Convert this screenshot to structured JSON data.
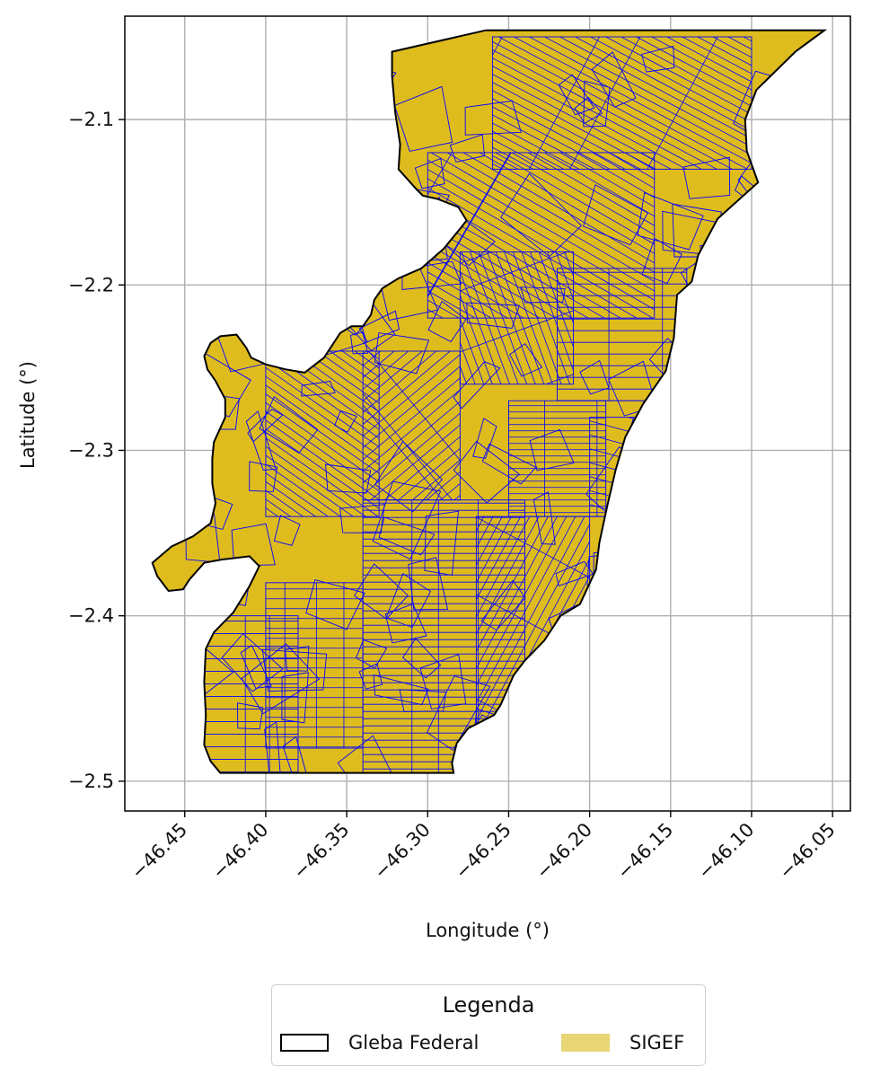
{
  "chart_data": {
    "type": "map",
    "xlabel": "Longitude (°)",
    "ylabel": "Latitude (°)",
    "xlim": [
      -46.487,
      -46.039
    ],
    "ylim": [
      -2.518,
      -2.0375
    ],
    "x_ticks": [
      -46.45,
      -46.4,
      -46.35,
      -46.3,
      -46.25,
      -46.2,
      -46.15,
      -46.1,
      -46.05
    ],
    "x_tick_labels": [
      "−46.45",
      "−46.40",
      "−46.35",
      "−46.30",
      "−46.25",
      "−46.20",
      "−46.15",
      "−46.10",
      "−46.05"
    ],
    "y_ticks": [
      -2.1,
      -2.2,
      -2.3,
      -2.4,
      -2.5
    ],
    "y_tick_labels": [
      "−2.1",
      "−2.2",
      "−2.3",
      "−2.4",
      "−2.5"
    ],
    "grid": true,
    "layers": [
      {
        "name": "Gleba Federal",
        "style": "outline",
        "edge_color": "#000000"
      },
      {
        "name": "SIGEF",
        "style": "filled parcels",
        "fill_color": "#dfbc1e",
        "edge_color": "#0000ff"
      }
    ],
    "boundary": [
      [
        -46.264,
        -2.046
      ],
      [
        -46.055,
        -2.046
      ],
      [
        -46.073,
        -2.059
      ],
      [
        -46.097,
        -2.082
      ],
      [
        -46.104,
        -2.1
      ],
      [
        -46.103,
        -2.119
      ],
      [
        -46.096,
        -2.138
      ],
      [
        -46.121,
        -2.16
      ],
      [
        -46.133,
        -2.182
      ],
      [
        -46.137,
        -2.198
      ],
      [
        -46.146,
        -2.206
      ],
      [
        -46.148,
        -2.232
      ],
      [
        -46.153,
        -2.252
      ],
      [
        -46.167,
        -2.272
      ],
      [
        -46.178,
        -2.292
      ],
      [
        -46.184,
        -2.312
      ],
      [
        -46.189,
        -2.333
      ],
      [
        -46.194,
        -2.356
      ],
      [
        -46.196,
        -2.372
      ],
      [
        -46.206,
        -2.393
      ],
      [
        -46.218,
        -2.4
      ],
      [
        -46.228,
        -2.415
      ],
      [
        -46.24,
        -2.427
      ],
      [
        -46.247,
        -2.436
      ],
      [
        -46.255,
        -2.454
      ],
      [
        -46.259,
        -2.46
      ],
      [
        -46.275,
        -2.468
      ],
      [
        -46.282,
        -2.477
      ],
      [
        -46.285,
        -2.489
      ],
      [
        -46.284,
        -2.495
      ],
      [
        -46.34,
        -2.495
      ],
      [
        -46.428,
        -2.495
      ],
      [
        -46.434,
        -2.488
      ],
      [
        -46.438,
        -2.478
      ],
      [
        -46.437,
        -2.46
      ],
      [
        -46.438,
        -2.44
      ],
      [
        -46.437,
        -2.42
      ],
      [
        -46.432,
        -2.41
      ],
      [
        -46.42,
        -2.398
      ],
      [
        -46.41,
        -2.382
      ],
      [
        -46.404,
        -2.37
      ],
      [
        -46.41,
        -2.364
      ],
      [
        -46.427,
        -2.366
      ],
      [
        -46.438,
        -2.368
      ],
      [
        -46.447,
        -2.378
      ],
      [
        -46.451,
        -2.384
      ],
      [
        -46.46,
        -2.385
      ],
      [
        -46.467,
        -2.376
      ],
      [
        -46.47,
        -2.368
      ],
      [
        -46.458,
        -2.358
      ],
      [
        -46.445,
        -2.352
      ],
      [
        -46.434,
        -2.344
      ],
      [
        -46.431,
        -2.332
      ],
      [
        -46.433,
        -2.32
      ],
      [
        -46.433,
        -2.305
      ],
      [
        -46.432,
        -2.295
      ],
      [
        -46.425,
        -2.28
      ],
      [
        -46.425,
        -2.269
      ],
      [
        -46.431,
        -2.258
      ],
      [
        -46.436,
        -2.251
      ],
      [
        -46.438,
        -2.243
      ],
      [
        -46.434,
        -2.235
      ],
      [
        -46.428,
        -2.231
      ],
      [
        -46.418,
        -2.23
      ],
      [
        -46.412,
        -2.238
      ],
      [
        -46.409,
        -2.244
      ],
      [
        -46.4,
        -2.248
      ],
      [
        -46.388,
        -2.251
      ],
      [
        -46.376,
        -2.253
      ],
      [
        -46.364,
        -2.244
      ],
      [
        -46.354,
        -2.229
      ],
      [
        -46.347,
        -2.225
      ],
      [
        -46.34,
        -2.225
      ],
      [
        -46.335,
        -2.218
      ],
      [
        -46.333,
        -2.209
      ],
      [
        -46.328,
        -2.202
      ],
      [
        -46.318,
        -2.196
      ],
      [
        -46.304,
        -2.19
      ],
      [
        -46.29,
        -2.178
      ],
      [
        -46.28,
        -2.166
      ],
      [
        -46.276,
        -2.161
      ],
      [
        -46.281,
        -2.153
      ],
      [
        -46.294,
        -2.148
      ],
      [
        -46.303,
        -2.146
      ],
      [
        -46.307,
        -2.142
      ],
      [
        -46.318,
        -2.13
      ],
      [
        -46.317,
        -2.115
      ],
      [
        -46.32,
        -2.096
      ],
      [
        -46.322,
        -2.074
      ],
      [
        -46.322,
        -2.059
      ]
    ]
  },
  "legend": {
    "title": "Legenda",
    "items": [
      {
        "label": "Gleba Federal",
        "swatch": "outline"
      },
      {
        "label": "SIGEF",
        "swatch": "#e8d574"
      }
    ]
  },
  "colors": {
    "fill": "#dfbc1e",
    "parcel_edge": "#0000ff",
    "boundary": "#000000",
    "grid": "#b0b0b0",
    "legend_sigef": "#e8d574"
  }
}
